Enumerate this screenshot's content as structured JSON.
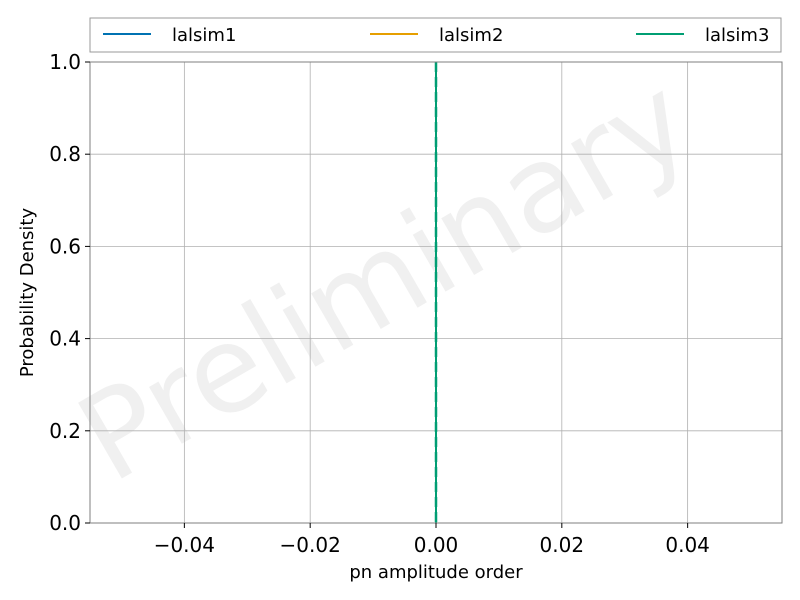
{
  "chart_data": {
    "type": "line",
    "title": "",
    "xlabel": "pn amplitude order",
    "ylabel": "Probability Density",
    "xlim": [
      -0.055,
      0.055
    ],
    "ylim": [
      0,
      1.0
    ],
    "xticks": [
      -0.04,
      -0.02,
      0.0,
      0.02,
      0.04
    ],
    "xtick_labels": [
      "−0.04",
      "−0.02",
      "0.00",
      "0.02",
      "0.04"
    ],
    "yticks": [
      0.0,
      0.2,
      0.4,
      0.6,
      0.8,
      1.0
    ],
    "ytick_labels": [
      "0.0",
      "0.2",
      "0.4",
      "0.6",
      "0.8",
      "1.0"
    ],
    "grid": true,
    "legend_position": "top, outside plot, 3 columns",
    "series": [
      {
        "name": "lalsim1",
        "color": "#0072b2",
        "x": [
          0.0,
          0.0
        ],
        "y": [
          0.0,
          1.0
        ]
      },
      {
        "name": "lalsim2",
        "color": "#e69f00",
        "x": [
          0.0,
          0.0
        ],
        "y": [
          0.0,
          1.0
        ]
      },
      {
        "name": "lalsim3",
        "color": "#009e73",
        "x": [
          0.0,
          0.0
        ],
        "y": [
          0.0,
          1.0
        ]
      }
    ],
    "vertical_dashed_line": {
      "x": 0.0,
      "color": "#009e73"
    },
    "watermark": "Preliminary"
  }
}
